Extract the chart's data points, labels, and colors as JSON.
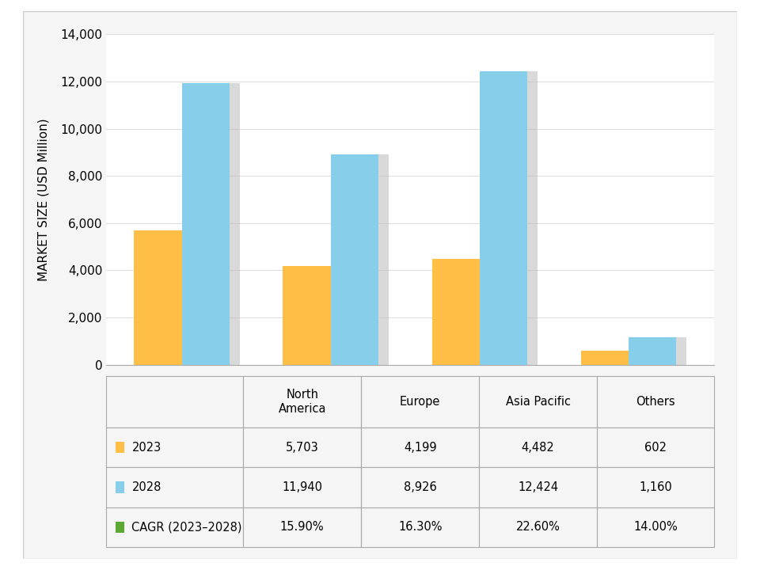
{
  "regions": [
    "North\nAmerica",
    "Europe",
    "Asia Pacific",
    "Others"
  ],
  "values_2023": [
    5703,
    4199,
    4482,
    602
  ],
  "values_2028": [
    11940,
    8926,
    12424,
    1160
  ],
  "cagr": [
    "15.90%",
    "16.30%",
    "22.60%",
    "14.00%"
  ],
  "color_2023": "#FFBF47",
  "color_2028": "#87CEEB",
  "color_cagr": "#5DA832",
  "ylim": [
    0,
    14000
  ],
  "yticks": [
    0,
    2000,
    4000,
    6000,
    8000,
    10000,
    12000,
    14000
  ],
  "ylabel": "MARKET SIZE (USD Million)",
  "bar_width": 0.32,
  "shadow_color": "#C0C0C0",
  "shadow_alpha": 0.6,
  "table_row_labels": [
    "2023",
    "2028",
    "CAGR (2023–2028)"
  ],
  "table_2023_values": [
    "5,703",
    "4,199",
    "4,482",
    "602"
  ],
  "table_2028_values": [
    "11,940",
    "8,926",
    "12,424",
    "1,160"
  ],
  "table_cagr_values": [
    "15.90%",
    "16.30%",
    "22.60%",
    "14.00%"
  ],
  "frame_color": "#E8E8E8",
  "grid_color": "#DDDDDD",
  "border_color": "#AAAAAA",
  "fontsize_axis": 11,
  "fontsize_table": 10.5
}
